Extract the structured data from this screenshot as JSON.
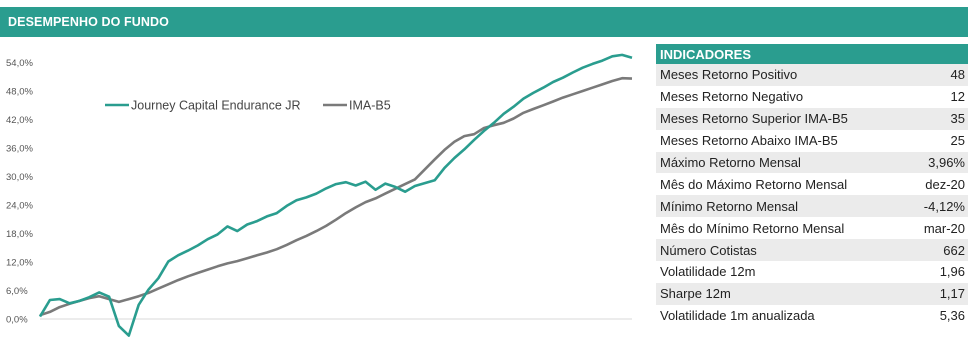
{
  "header": {
    "title": "DESEMPENHO DO FUNDO"
  },
  "colors": {
    "accent": "#2a9d8f",
    "fund_line": "#2a9d8f",
    "benchmark_line": "#7a7a7a"
  },
  "chart_data": {
    "type": "line",
    "y_tick_labels": [
      "0,0%",
      "6,0%",
      "12,0%",
      "18,0%",
      "24,0%",
      "30,0%",
      "36,0%",
      "42,0%",
      "48,0%",
      "54,0%"
    ],
    "ylim": [
      0,
      57
    ],
    "legend_position": "top-left",
    "grid": false,
    "x": [
      0,
      1,
      2,
      3,
      4,
      5,
      6,
      7,
      8,
      9,
      10,
      11,
      12,
      13,
      14,
      15,
      16,
      17,
      18,
      19,
      20,
      21,
      22,
      23,
      24,
      25,
      26,
      27,
      28,
      29,
      30,
      31,
      32,
      33,
      34,
      35,
      36,
      37,
      38,
      39,
      40,
      41,
      42,
      43,
      44,
      45,
      46,
      47,
      48,
      49,
      50,
      51,
      52,
      53,
      54,
      55,
      56,
      57,
      58,
      59,
      60
    ],
    "series": [
      {
        "name": "Journey Capital Endurance JR",
        "values": [
          0.5,
          4.0,
          4.2,
          3.3,
          3.8,
          4.6,
          5.6,
          4.7,
          -1.5,
          -3.5,
          3.0,
          6.2,
          8.6,
          12.1,
          13.4,
          14.4,
          15.5,
          16.8,
          17.8,
          19.5,
          18.5,
          19.9,
          20.6,
          21.6,
          22.3,
          23.8,
          25.0,
          25.6,
          26.4,
          27.5,
          28.4,
          28.8,
          28.1,
          28.9,
          27.2,
          28.5,
          27.8,
          26.8,
          28.0,
          28.6,
          29.2,
          31.8,
          33.9,
          35.7,
          37.7,
          39.6,
          41.3,
          43.2,
          44.7,
          46.4,
          47.6,
          48.7,
          49.9,
          50.8,
          51.9,
          52.9,
          53.7,
          54.4,
          55.3,
          55.6,
          55.0
        ]
      },
      {
        "name": "IMA-B5",
        "values": [
          0.8,
          1.5,
          2.5,
          3.2,
          3.8,
          4.4,
          4.8,
          4.2,
          3.6,
          4.2,
          4.8,
          5.5,
          6.4,
          7.3,
          8.2,
          9.0,
          9.7,
          10.4,
          11.1,
          11.7,
          12.2,
          12.8,
          13.4,
          14.0,
          14.7,
          15.6,
          16.6,
          17.5,
          18.5,
          19.6,
          20.9,
          22.3,
          23.5,
          24.6,
          25.4,
          26.4,
          27.4,
          28.4,
          29.4,
          31.5,
          33.6,
          35.6,
          37.3,
          38.5,
          38.9,
          40.2,
          40.8,
          41.3,
          42.2,
          43.4,
          44.2,
          45.0,
          45.8,
          46.6,
          47.3,
          48.0,
          48.7,
          49.4,
          50.1,
          50.7,
          50.6
        ]
      }
    ]
  },
  "indicators": {
    "title": "INDICADORES",
    "rows": [
      {
        "label": "Meses Retorno Positivo",
        "value": "48"
      },
      {
        "label": "Meses Retorno Negativo",
        "value": "12"
      },
      {
        "label": "Meses Retorno Superior IMA-B5",
        "value": "35"
      },
      {
        "label": "Meses Retorno Abaixo IMA-B5",
        "value": "25"
      },
      {
        "label": "Máximo Retorno Mensal",
        "value": "3,96%"
      },
      {
        "label": "Mês do Máximo Retorno Mensal",
        "value": "dez-20"
      },
      {
        "label": "Mínimo Retorno Mensal",
        "value": "-4,12%"
      },
      {
        "label": "Mês do Mínimo Retorno Mensal",
        "value": "mar-20"
      },
      {
        "label": "Número Cotistas",
        "value": "662"
      },
      {
        "label": "Volatilidade 12m",
        "value": "1,96"
      },
      {
        "label": "Sharpe 12m",
        "value": "1,17"
      },
      {
        "label": "Volatilidade 1m anualizada",
        "value": "5,36"
      }
    ]
  }
}
